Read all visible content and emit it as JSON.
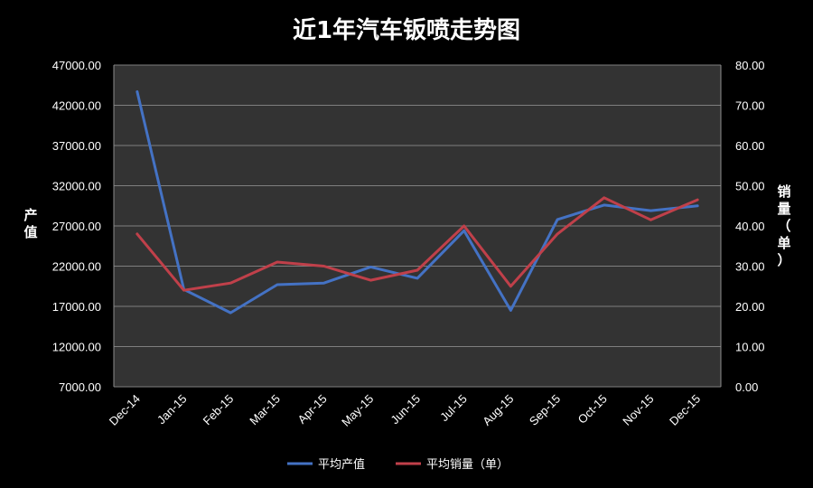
{
  "chart_data": {
    "type": "line",
    "title": "近1年汽车钣喷走势图",
    "categories": [
      "Dec-14",
      "Jan-15",
      "Feb-15",
      "Mar-15",
      "Apr-15",
      "May-15",
      "Jun-15",
      "Jul-15",
      "Aug-15",
      "Sep-15",
      "Oct-15",
      "Nov-15",
      "Dec-15"
    ],
    "y_left": {
      "label": "产值",
      "min": 7000,
      "max": 47000,
      "step": 5000,
      "ticks": [
        "7000.00",
        "12000.00",
        "17000.00",
        "22000.00",
        "27000.00",
        "32000.00",
        "37000.00",
        "42000.00",
        "47000.00"
      ]
    },
    "y_right": {
      "label": "销量（单）",
      "min": 0,
      "max": 80,
      "step": 10,
      "ticks": [
        "0.00",
        "10.00",
        "20.00",
        "30.00",
        "40.00",
        "50.00",
        "60.00",
        "70.00",
        "80.00"
      ]
    },
    "series": [
      {
        "name": "平均产值",
        "axis": "left",
        "color": "#4472c4",
        "values": [
          43700,
          19100,
          16200,
          19700,
          19900,
          21900,
          20500,
          26400,
          16500,
          27800,
          29600,
          28900,
          29500
        ]
      },
      {
        "name": "平均销量（单）",
        "axis": "right",
        "color": "#c0404a",
        "values": [
          38,
          24,
          25.8,
          31,
          30,
          26.5,
          29,
          40,
          25,
          38,
          47,
          41.5,
          46.5
        ]
      }
    ],
    "grid": true,
    "legend_position": "bottom",
    "plot_background": "#333333",
    "gridline_color": "#7f7f7f"
  }
}
